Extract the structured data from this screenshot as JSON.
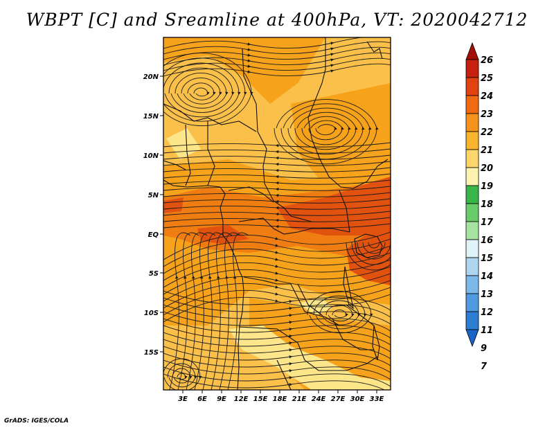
{
  "title": "WBPT [C] and Sreamline at 400hPa, VT: 2020042712",
  "credit": "GrADS: IGES/COLA",
  "map": {
    "lon_labels": [
      "3E",
      "6E",
      "9E",
      "12E",
      "15E",
      "18E",
      "21E",
      "24E",
      "27E",
      "30E",
      "33E"
    ],
    "lat_labels": [
      "20N",
      "15N",
      "10N",
      "5N",
      "EQ",
      "5S",
      "10S",
      "15S"
    ],
    "fill_colors": {
      "c19_20": "#fde58a",
      "c20_21": "#fbc04a",
      "c21_22": "#f6a21b",
      "c22_23": "#ef7d12",
      "c23_24": "#e2520f"
    },
    "streamline_color": "#1a1a1a"
  },
  "colorbar": {
    "labels": [
      "26",
      "25",
      "24",
      "23",
      "22",
      "21",
      "20",
      "19",
      "18",
      "17",
      "16",
      "15",
      "14",
      "13",
      "12",
      "11",
      "9",
      "7"
    ],
    "colors": [
      "#a50f08",
      "#c8200f",
      "#e2420f",
      "#ef6a12",
      "#f6931c",
      "#f9b52e",
      "#fcd66a",
      "#fdf3b0",
      "#3ab54a",
      "#69cc6b",
      "#a6e3a0",
      "#e0f3f8",
      "#aed6f1",
      "#7cb9ea",
      "#4f9ae0",
      "#2d7dd2",
      "#1a64c8"
    ]
  }
}
